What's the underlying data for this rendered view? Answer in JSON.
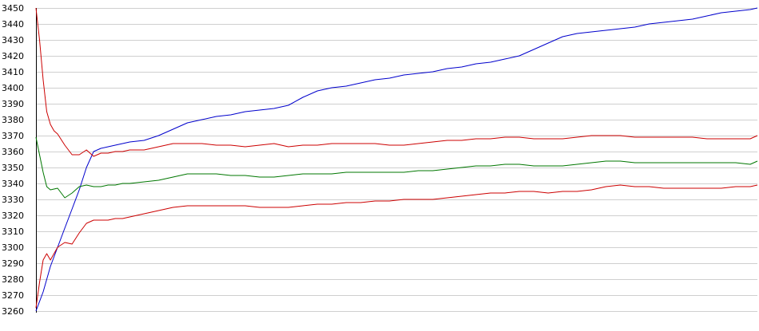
{
  "chart_data": {
    "type": "line",
    "title": "",
    "xlabel": "",
    "ylabel": "",
    "grid": true,
    "legend": "none",
    "ylim": [
      3260,
      3450
    ],
    "yticks": [
      3260,
      3270,
      3280,
      3290,
      3300,
      3310,
      3320,
      3330,
      3340,
      3350,
      3360,
      3370,
      3380,
      3390,
      3400,
      3410,
      3420,
      3430,
      3440,
      3450
    ],
    "xlim": [
      0,
      100
    ],
    "series": [
      {
        "color": "#0000cc",
        "x": [
          0,
          1,
          2,
          3,
          4,
          5,
          6,
          7,
          8,
          9,
          10,
          11,
          12,
          13,
          15,
          17,
          19,
          21,
          23,
          25,
          27,
          29,
          31,
          33,
          35,
          37,
          39,
          41,
          43,
          45,
          47,
          49,
          51,
          53,
          55,
          57,
          59,
          61,
          63,
          65,
          67,
          69,
          71,
          73,
          75,
          77,
          79,
          81,
          83,
          85,
          87,
          89,
          91,
          93,
          95,
          97,
          99,
          100
        ],
        "values": [
          3260,
          3272,
          3288,
          3300,
          3312,
          3324,
          3336,
          3350,
          3360,
          3362,
          3363,
          3364,
          3365,
          3366,
          3367,
          3370,
          3374,
          3378,
          3380,
          3382,
          3383,
          3385,
          3386,
          3387,
          3389,
          3394,
          3398,
          3400,
          3401,
          3403,
          3405,
          3406,
          3408,
          3409,
          3410,
          3412,
          3413,
          3415,
          3416,
          3418,
          3420,
          3424,
          3428,
          3432,
          3434,
          3435,
          3436,
          3437,
          3438,
          3440,
          3441,
          3442,
          3443,
          3445,
          3447,
          3448,
          3449,
          3450
        ]
      },
      {
        "color": "#cc0000",
        "x": [
          0,
          0.5,
          1,
          1.5,
          2,
          2.5,
          3,
          4,
          5,
          6,
          7,
          8,
          9,
          10,
          11,
          12,
          13,
          15,
          17,
          19,
          21,
          23,
          25,
          27,
          29,
          31,
          33,
          35,
          37,
          39,
          41,
          43,
          45,
          47,
          49,
          51,
          53,
          55,
          57,
          59,
          61,
          63,
          65,
          67,
          69,
          71,
          73,
          75,
          77,
          79,
          81,
          83,
          85,
          87,
          89,
          91,
          93,
          95,
          97,
          99,
          100
        ],
        "values": [
          3450,
          3430,
          3405,
          3385,
          3377,
          3373,
          3371,
          3364,
          3358,
          3358,
          3361,
          3357,
          3359,
          3359,
          3360,
          3360,
          3361,
          3361,
          3363,
          3365,
          3365,
          3365,
          3364,
          3364,
          3363,
          3364,
          3365,
          3363,
          3364,
          3364,
          3365,
          3365,
          3365,
          3365,
          3364,
          3364,
          3365,
          3366,
          3367,
          3367,
          3368,
          3368,
          3369,
          3369,
          3368,
          3368,
          3368,
          3369,
          3370,
          3370,
          3370,
          3369,
          3369,
          3369,
          3369,
          3369,
          3368,
          3368,
          3368,
          3368,
          3370
        ]
      },
      {
        "color": "#007700",
        "x": [
          0,
          0.5,
          1,
          1.5,
          2,
          3,
          4,
          5,
          6,
          7,
          8,
          9,
          10,
          11,
          12,
          13,
          15,
          17,
          19,
          21,
          23,
          25,
          27,
          29,
          31,
          33,
          35,
          37,
          39,
          41,
          43,
          45,
          47,
          49,
          51,
          53,
          55,
          57,
          59,
          61,
          63,
          65,
          67,
          69,
          71,
          73,
          75,
          77,
          79,
          81,
          83,
          85,
          87,
          89,
          91,
          93,
          95,
          97,
          99,
          100
        ],
        "values": [
          3369,
          3358,
          3347,
          3338,
          3336,
          3337,
          3331,
          3334,
          3338,
          3339,
          3338,
          3338,
          3339,
          3339,
          3340,
          3340,
          3341,
          3342,
          3344,
          3346,
          3346,
          3346,
          3345,
          3345,
          3344,
          3344,
          3345,
          3346,
          3346,
          3346,
          3347,
          3347,
          3347,
          3347,
          3347,
          3348,
          3348,
          3349,
          3350,
          3351,
          3351,
          3352,
          3352,
          3351,
          3351,
          3351,
          3352,
          3353,
          3354,
          3354,
          3353,
          3353,
          3353,
          3353,
          3353,
          3353,
          3353,
          3353,
          3352,
          3354
        ]
      },
      {
        "color": "#cc0000",
        "x": [
          0,
          0.5,
          1,
          1.5,
          2,
          3,
          4,
          5,
          6,
          7,
          8,
          9,
          10,
          11,
          12,
          13,
          15,
          17,
          19,
          21,
          23,
          25,
          27,
          29,
          31,
          33,
          35,
          37,
          39,
          41,
          43,
          45,
          47,
          49,
          51,
          53,
          55,
          57,
          59,
          61,
          63,
          65,
          67,
          69,
          71,
          73,
          75,
          77,
          79,
          81,
          83,
          85,
          87,
          89,
          91,
          93,
          95,
          97,
          99,
          100
        ],
        "values": [
          3262,
          3278,
          3292,
          3296,
          3292,
          3300,
          3303,
          3302,
          3309,
          3315,
          3317,
          3317,
          3317,
          3318,
          3318,
          3319,
          3321,
          3323,
          3325,
          3326,
          3326,
          3326,
          3326,
          3326,
          3325,
          3325,
          3325,
          3326,
          3327,
          3327,
          3328,
          3328,
          3329,
          3329,
          3330,
          3330,
          3330,
          3331,
          3332,
          3333,
          3334,
          3334,
          3335,
          3335,
          3334,
          3335,
          3335,
          3336,
          3338,
          3339,
          3338,
          3338,
          3337,
          3337,
          3337,
          3337,
          3337,
          3338,
          3338,
          3339
        ]
      }
    ]
  }
}
